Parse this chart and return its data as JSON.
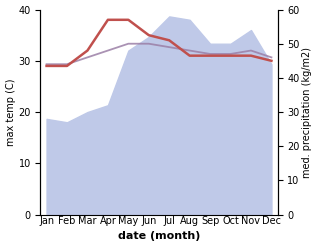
{
  "months": [
    "Jan",
    "Feb",
    "Mar",
    "Apr",
    "May",
    "Jun",
    "Jul",
    "Aug",
    "Sep",
    "Oct",
    "Nov",
    "Dec"
  ],
  "temp": [
    29,
    29,
    32,
    38,
    38,
    35,
    34,
    31,
    31,
    31,
    31,
    30
  ],
  "precip": [
    28,
    27,
    30,
    32,
    48,
    52,
    58,
    57,
    50,
    50,
    54,
    44
  ],
  "precip_line": [
    44,
    44,
    46,
    48,
    50,
    50,
    49,
    48,
    47,
    47,
    48,
    46
  ],
  "temp_color": "#c0504d",
  "precip_line_color": "#9b7fa6",
  "precip_fill_color": "#bfc9e8",
  "temp_ylim": [
    0,
    40
  ],
  "precip_ylim": [
    0,
    60
  ],
  "xlabel": "date (month)",
  "ylabel_left": "max temp (C)",
  "ylabel_right": "med. precipitation (kg/m2)",
  "bg_color": "#ffffff",
  "label_fontsize": 8,
  "tick_fontsize": 7
}
